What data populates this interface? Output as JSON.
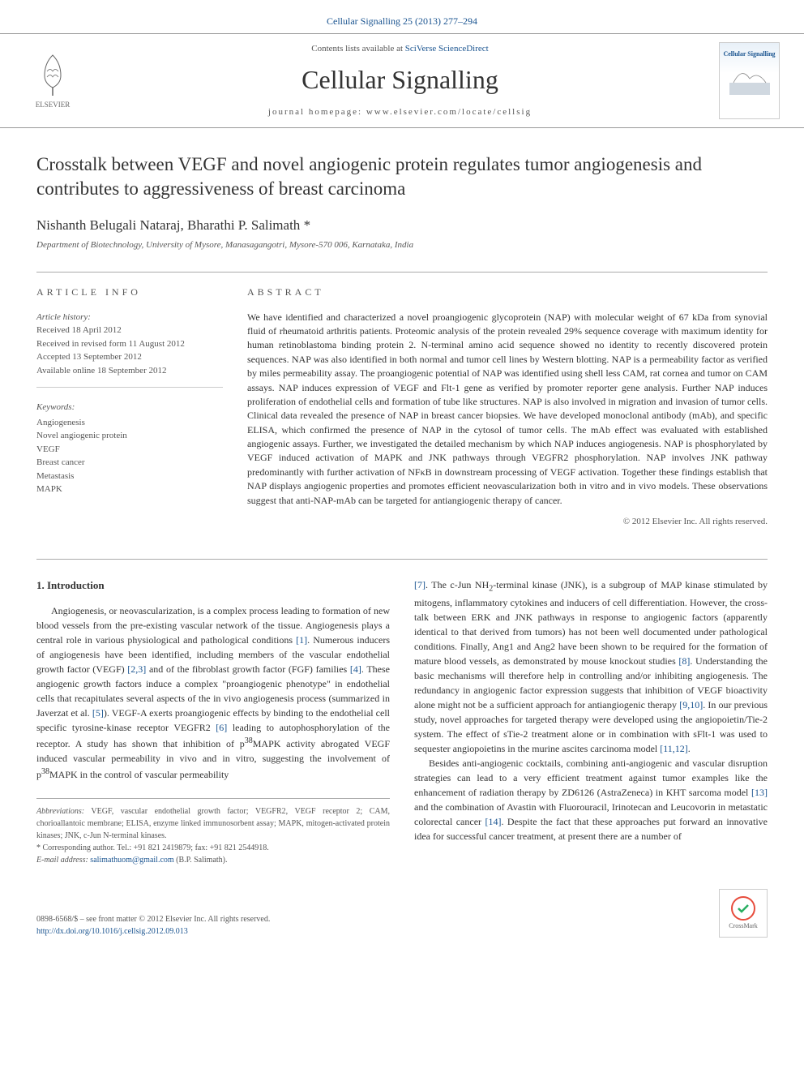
{
  "top": {
    "citation": "Cellular Signalling 25 (2013) 277–294"
  },
  "header": {
    "contents_prefix": "Contents lists available at ",
    "contents_link": "SciVerse ScienceDirect",
    "journal": "Cellular Signalling",
    "homepage": "journal homepage: www.elsevier.com/locate/cellsig",
    "publisher": "ELSEVIER",
    "cover_title": "Cellular Signalling"
  },
  "article": {
    "title": "Crosstalk between VEGF and novel angiogenic protein regulates tumor angiogenesis and contributes to aggressiveness of breast carcinoma",
    "authors": "Nishanth Belugali Nataraj, Bharathi P. Salimath ",
    "corr_marker": "*",
    "affiliation": "Department of Biotechnology, University of Mysore, Manasagangotri, Mysore-570 006, Karnataka, India"
  },
  "info": {
    "label": "ARTICLE INFO",
    "history_label": "Article history:",
    "history": [
      "Received 18 April 2012",
      "Received in revised form 11 August 2012",
      "Accepted 13 September 2012",
      "Available online 18 September 2012"
    ],
    "keywords_label": "Keywords:",
    "keywords": [
      "Angiogenesis",
      "Novel angiogenic protein",
      "VEGF",
      "Breast cancer",
      "Metastasis",
      "MAPK"
    ]
  },
  "abstract": {
    "label": "ABSTRACT",
    "text": "We have identified and characterized a novel proangiogenic glycoprotein (NAP) with molecular weight of 67 kDa from synovial fluid of rheumatoid arthritis patients. Proteomic analysis of the protein revealed 29% sequence coverage with maximum identity for human retinoblastoma binding protein 2. N-terminal amino acid sequence showed no identity to recently discovered protein sequences. NAP was also identified in both normal and tumor cell lines by Western blotting. NAP is a permeability factor as verified by miles permeability assay. The proangiogenic potential of NAP was identified using shell less CAM, rat cornea and tumor on CAM assays. NAP induces expression of VEGF and Flt-1 gene as verified by promoter reporter gene analysis. Further NAP induces proliferation of endothelial cells and formation of tube like structures. NAP is also involved in migration and invasion of tumor cells. Clinical data revealed the presence of NAP in breast cancer biopsies. We have developed monoclonal antibody (mAb), and specific ELISA, which confirmed the presence of NAP in the cytosol of tumor cells. The mAb effect was evaluated with established angiogenic assays. Further, we investigated the detailed mechanism by which NAP induces angiogenesis. NAP is phosphorylated by VEGF induced activation of MAPK and JNK pathways through VEGFR2 phosphorylation. NAP involves JNK pathway predominantly with further activation of NFκB in downstream processing of VEGF activation. Together these findings establish that NAP displays angiogenic properties and promotes efficient neovascularization both in vitro and in vivo models. These observations suggest that anti-NAP-mAb can be targeted for antiangiogenic therapy of cancer.",
    "copyright": "© 2012 Elsevier Inc. All rights reserved."
  },
  "intro": {
    "heading": "1. Introduction",
    "col1_html": "Angiogenesis, or neovascularization, is a complex process leading to formation of new blood vessels from the pre-existing vascular network of the tissue. Angiogenesis plays a central role in various physiological and pathological conditions <span class='ref'>[1]</span>. Numerous inducers of angiogenesis have been identified, including members of the vascular endothelial growth factor (VEGF) <span class='ref'>[2,3]</span> and of the fibroblast growth factor (FGF) families <span class='ref'>[4]</span>. These angiogenic growth factors induce a complex \"proangiogenic phenotype\" in endothelial cells that recapitulates several aspects of the in vivo angiogenesis process (summarized in Javerzat et al. <span class='ref'>[5]</span>). VEGF-A exerts proangiogenic effects by binding to the endothelial cell specific tyrosine-kinase receptor VEGFR2 <span class='ref'>[6]</span> leading to autophosphorylation of the receptor. A study has shown that inhibition of p<sup>38</sup>MAPK activity abrogated VEGF induced vascular permeability in vivo and in vitro, suggesting the involvement of p<sup>38</sup>MAPK in the control of vascular permeability",
    "col2a_html": "<span class='ref'>[7]</span>. The c-Jun NH<sub>2</sub>-terminal kinase (JNK), is a subgroup of MAP kinase stimulated by mitogens, inflammatory cytokines and inducers of cell differentiation. However, the cross-talk between ERK and JNK pathways in response to angiogenic factors (apparently identical to that derived from tumors) has not been well documented under pathological conditions. Finally, Ang1 and Ang2 have been shown to be required for the formation of mature blood vessels, as demonstrated by mouse knockout studies <span class='ref'>[8]</span>. Understanding the basic mechanisms will therefore help in controlling and/or inhibiting angiogenesis. The redundancy in angiogenic factor expression suggests that inhibition of VEGF bioactivity alone might not be a sufficient approach for antiangiogenic therapy <span class='ref'>[9,10]</span>. In our previous study, novel approaches for targeted therapy were developed using the angiopoietin/Tie-2 system. The effect of sTie-2 treatment alone or in combination with sFlt-1 was used to sequester angiopoietins in the murine ascites carcinoma model <span class='ref'>[11,12]</span>.",
    "col2b_html": "Besides anti-angiogenic cocktails, combining anti-angiogenic and vascular disruption strategies can lead to a very efficient treatment against tumor examples like the enhancement of radiation therapy by ZD6126 (AstraZeneca) in KHT sarcoma model <span class='ref'>[13]</span> and the combination of Avastin with Fluorouracil, Irinotecan and Leucovorin in metastatic colorectal cancer <span class='ref'>[14]</span>. Despite the fact that these approaches put forward an innovative idea for successful cancer treatment, at present there are a number of"
  },
  "footnotes": {
    "abbrev_label": "Abbreviations:",
    "abbrev": " VEGF, vascular endothelial growth factor; VEGFR2, VEGF receptor 2; CAM, chorioallantoic membrane; ELISA, enzyme linked immunosorbent assay; MAPK, mitogen-activated protein kinases; JNK, c-Jun N-terminal kinases.",
    "corr": "* Corresponding author. Tel.: +91 821 2419879; fax: +91 821 2544918.",
    "email_label": "E-mail address: ",
    "email": "salimathuom@gmail.com",
    "email_suffix": " (B.P. Salimath)."
  },
  "footer": {
    "issn": "0898-6568/$ – see front matter © 2012 Elsevier Inc. All rights reserved.",
    "doi": "http://dx.doi.org/10.1016/j.cellsig.2012.09.013",
    "crossmark": "CrossMark"
  },
  "colors": {
    "link": "#1a5490",
    "text": "#333333",
    "muted": "#555555",
    "border": "#aaaaaa"
  }
}
